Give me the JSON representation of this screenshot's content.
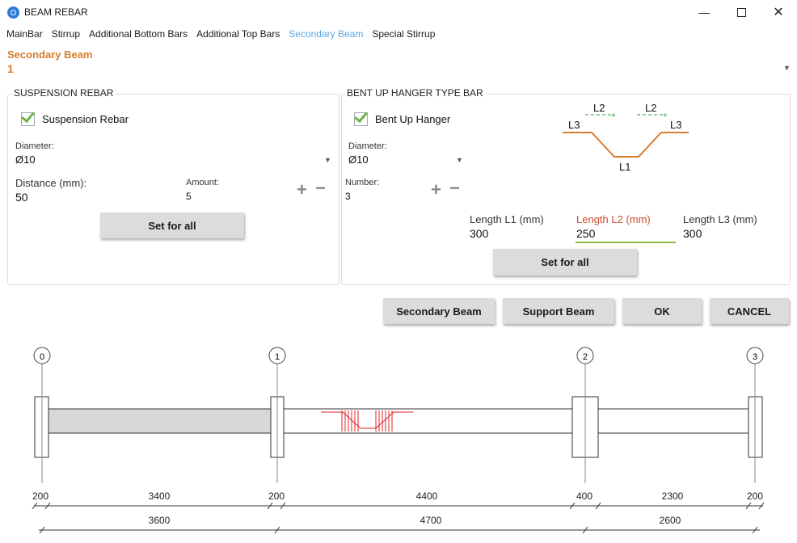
{
  "window": {
    "title": "BEAM REBAR"
  },
  "menu": [
    "MainBar",
    "Stirrup",
    "Additional Bottom Bars",
    "Additional Top Bars",
    "Secondary Beam",
    "Special Stirrup"
  ],
  "secondary_beam": {
    "label": "Secondary Beam",
    "value": "1"
  },
  "suspension": {
    "group_title": "SUSPENSION REBAR",
    "checkbox_label": "Suspension Rebar",
    "diameter_label": "Diameter:",
    "diameter_value": "Ø10",
    "distance_label": "Distance (mm):",
    "distance_value": "50",
    "amount_label": "Amount:",
    "amount_value": "5",
    "set_all": "Set for all"
  },
  "bentup": {
    "group_title": "BENT UP HANGER TYPE BAR",
    "checkbox_label": "Bent Up Hanger",
    "diameter_label": "Diameter:",
    "diameter_value": "Ø10",
    "number_label": "Number:",
    "number_value": "3",
    "l1_label": "Length L1 (mm)",
    "l1_value": "300",
    "l2_label": "Length L2 (mm)",
    "l2_value": "250",
    "l3_label": "Length L3 (mm)",
    "l3_value": "300",
    "set_all": "Set for all",
    "diagram": {
      "l1": "L1",
      "l2": "L2",
      "l3": "L3"
    }
  },
  "buttons": {
    "secondary_beam": "Secondary Beam",
    "support_beam": "Support Beam",
    "ok": "OK",
    "cancel": "CANCEL"
  },
  "plan": {
    "axes": [
      "0",
      "1",
      "2",
      "3"
    ],
    "dims_top": [
      "200",
      "3400",
      "200",
      "4400",
      "400",
      "2300",
      "200"
    ],
    "dims_bottom": [
      "3600",
      "4700",
      "2600"
    ]
  },
  "colors": {
    "accent": "#d67d2e",
    "tab_active": "#5aa6e0",
    "check_green": "#6db33f",
    "rebar_red": "#e02020",
    "focus_underline": "#8ab848"
  }
}
